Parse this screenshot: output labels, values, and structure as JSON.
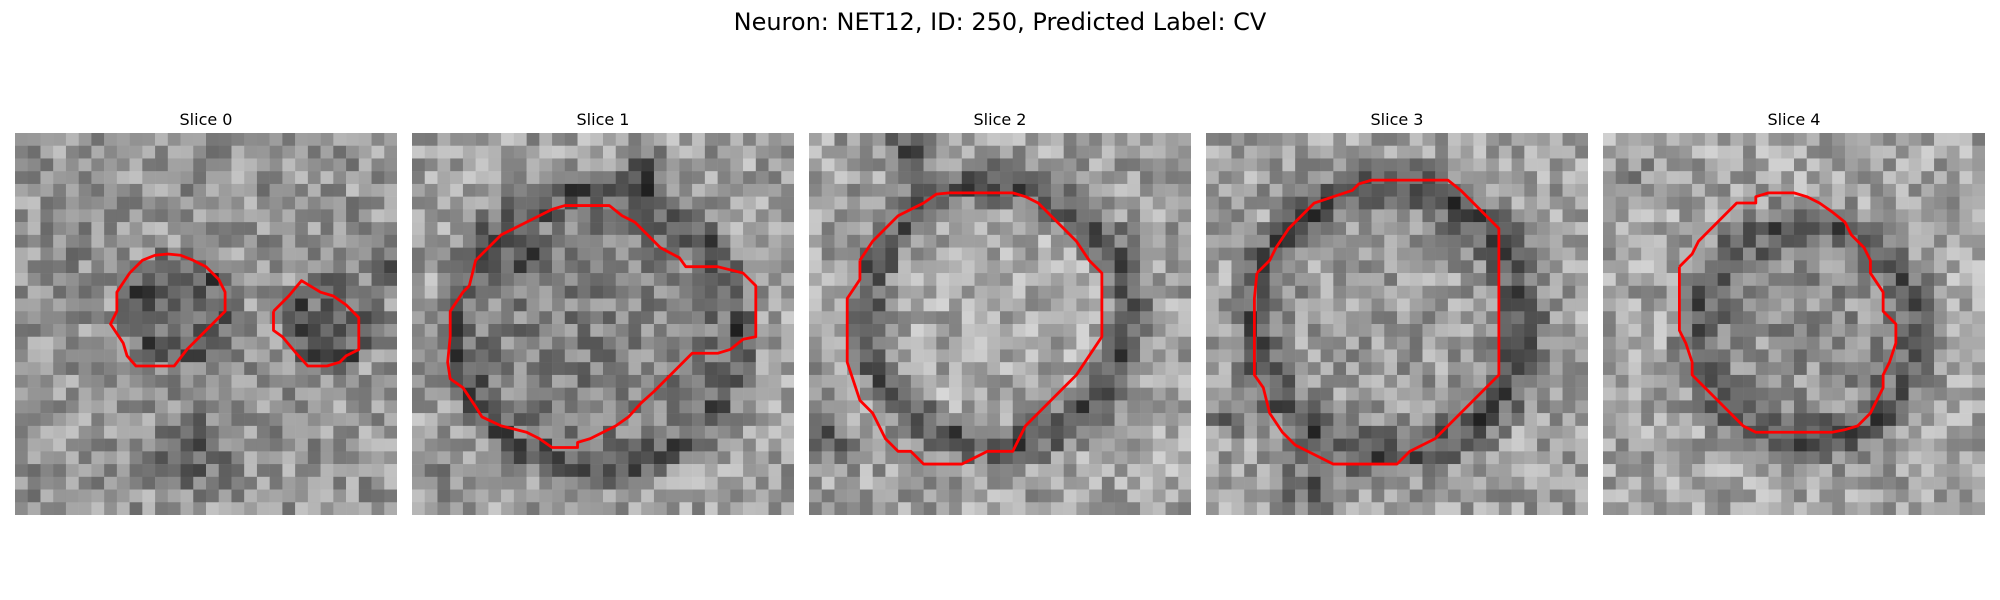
{
  "title": "Neuron: NET12, ID: 250, Predicted Label: CV",
  "colors": {
    "contour": "#ff0000",
    "colormap": "grayscale"
  },
  "panels": [
    {
      "label": "Slice 0"
    },
    {
      "label": "Slice 1"
    },
    {
      "label": "Slice 2"
    },
    {
      "label": "Slice 3"
    },
    {
      "label": "Slice 4"
    }
  ]
}
